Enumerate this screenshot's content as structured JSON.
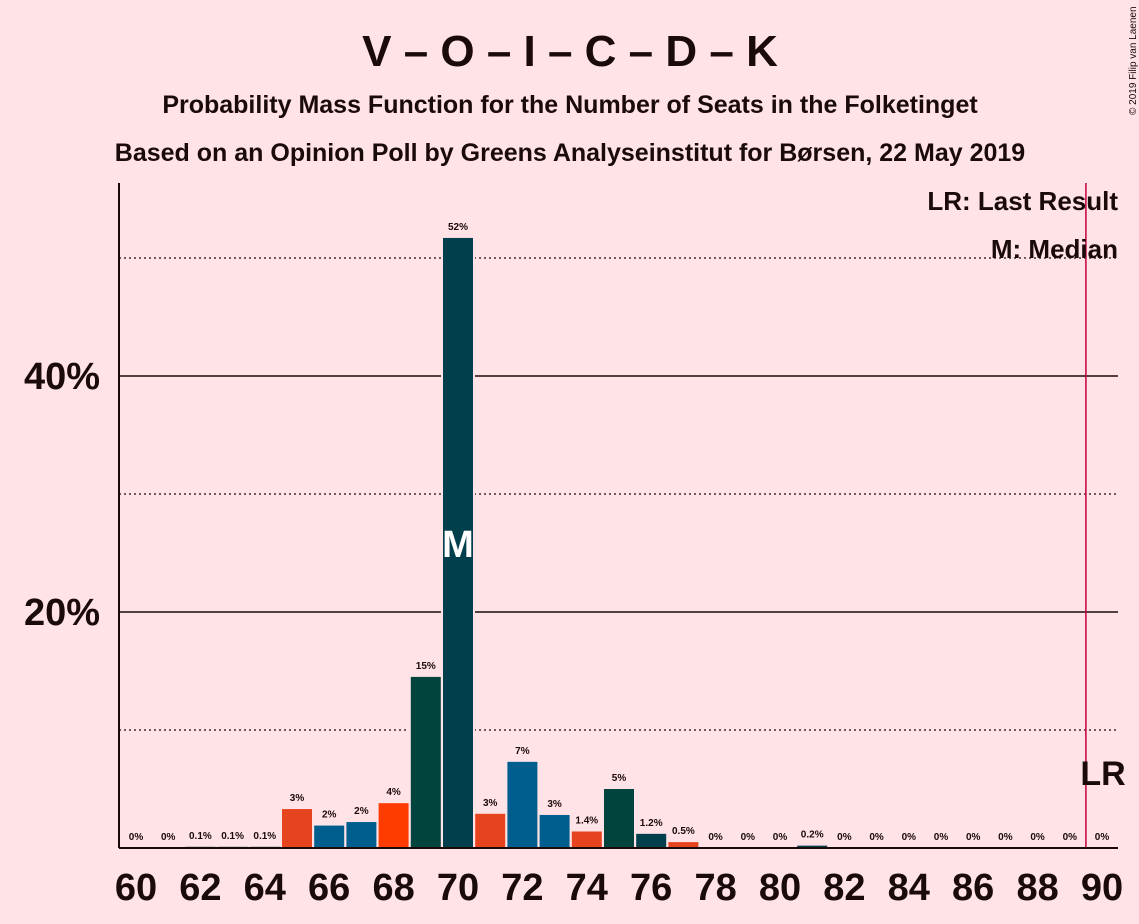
{
  "copyright": "© 2019 Filip van Laenen",
  "chart_data": {
    "type": "bar",
    "title": "V – O – I – C – D – K",
    "subtitle": "Probability Mass Function for the Number of Seats in the Folketinget",
    "subtitle2": "Based on an Opinion Poll by Greens Analyseinstitut for Børsen, 22 May 2019",
    "legend": [
      "LR: Last Result",
      "M: Median"
    ],
    "legend_position": "top-right",
    "ylim": [
      0,
      56
    ],
    "yticks": [
      {
        "value": 20,
        "label": "20%"
      },
      {
        "value": 40,
        "label": "40%"
      }
    ],
    "y_dotted_gridlines": [
      10,
      30,
      50
    ],
    "xlim": [
      60,
      90
    ],
    "xticks": [
      60,
      62,
      64,
      66,
      68,
      70,
      72,
      74,
      76,
      78,
      80,
      82,
      84,
      86,
      88,
      90
    ],
    "bars": [
      {
        "x": 60,
        "value": 0,
        "label": "0%",
        "color": "#003f4b"
      },
      {
        "x": 61,
        "value": 0,
        "label": "0%",
        "color": "#003f4b"
      },
      {
        "x": 62,
        "value": 0.1,
        "label": "0.1%",
        "color": "#003f4b"
      },
      {
        "x": 63,
        "value": 0.1,
        "label": "0.1%",
        "color": "#003f4b"
      },
      {
        "x": 64,
        "value": 0.1,
        "label": "0.1%",
        "color": "#003f4b"
      },
      {
        "x": 65,
        "value": 3.3,
        "label": "3%",
        "color": "#e6441e"
      },
      {
        "x": 66,
        "value": 1.9,
        "label": "2%",
        "color": "#005e8e"
      },
      {
        "x": 67,
        "value": 2.2,
        "label": "2%",
        "color": "#005e8e"
      },
      {
        "x": 68,
        "value": 3.8,
        "label": "4%",
        "color": "#ff3c00"
      },
      {
        "x": 69,
        "value": 14.5,
        "label": "15%",
        "color": "#00443d"
      },
      {
        "x": 70,
        "value": 51.7,
        "label": "52%",
        "color": "#003f4b"
      },
      {
        "x": 71,
        "value": 2.9,
        "label": "3%",
        "color": "#e6441e"
      },
      {
        "x": 72,
        "value": 7.3,
        "label": "7%",
        "color": "#005e8e"
      },
      {
        "x": 73,
        "value": 2.8,
        "label": "3%",
        "color": "#005e8e"
      },
      {
        "x": 74,
        "value": 1.4,
        "label": "1.4%",
        "color": "#e6441e"
      },
      {
        "x": 75,
        "value": 5.0,
        "label": "5%",
        "color": "#00443d"
      },
      {
        "x": 76,
        "value": 1.2,
        "label": "1.2%",
        "color": "#003f4b"
      },
      {
        "x": 77,
        "value": 0.5,
        "label": "0.5%",
        "color": "#e6441e"
      },
      {
        "x": 78,
        "value": 0,
        "label": "0%",
        "color": "#003f4b"
      },
      {
        "x": 79,
        "value": 0,
        "label": "0%",
        "color": "#003f4b"
      },
      {
        "x": 80,
        "value": 0,
        "label": "0%",
        "color": "#003f4b"
      },
      {
        "x": 81,
        "value": 0.2,
        "label": "0.2%",
        "color": "#003f4b"
      },
      {
        "x": 82,
        "value": 0,
        "label": "0%",
        "color": "#003f4b"
      },
      {
        "x": 83,
        "value": 0,
        "label": "0%",
        "color": "#003f4b"
      },
      {
        "x": 84,
        "value": 0,
        "label": "0%",
        "color": "#003f4b"
      },
      {
        "x": 85,
        "value": 0,
        "label": "0%",
        "color": "#003f4b"
      },
      {
        "x": 86,
        "value": 0,
        "label": "0%",
        "color": "#003f4b"
      },
      {
        "x": 87,
        "value": 0,
        "label": "0%",
        "color": "#003f4b"
      },
      {
        "x": 88,
        "value": 0,
        "label": "0%",
        "color": "#003f4b"
      },
      {
        "x": 89,
        "value": 0,
        "label": "0%",
        "color": "#003f4b"
      },
      {
        "x": 90,
        "value": 0,
        "label": "0%",
        "color": "#003f4b"
      }
    ],
    "median": {
      "x": 70,
      "label": "M"
    },
    "last_result": {
      "x": 89.5,
      "label": "LR",
      "color": "#c00040"
    },
    "colors": {
      "background": "#ffe3e6",
      "text": "#1a0a0a"
    }
  }
}
